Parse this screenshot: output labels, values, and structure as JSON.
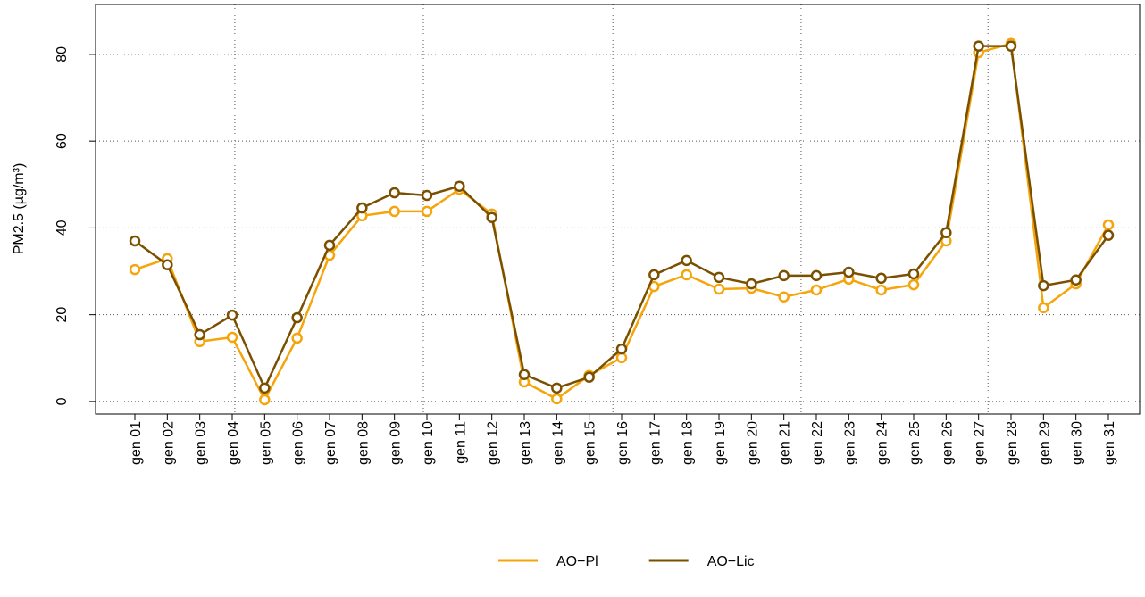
{
  "chart_data": {
    "type": "line",
    "y_label": "PM2.5 (µg/m³)",
    "categories": [
      "gen 01",
      "gen 02",
      "gen 03",
      "gen 04",
      "gen 05",
      "gen 06",
      "gen 07",
      "gen 08",
      "gen 09",
      "gen 10",
      "gen 11",
      "gen 12",
      "gen 13",
      "gen 14",
      "gen 15",
      "gen 16",
      "gen 17",
      "gen 18",
      "gen 19",
      "gen 20",
      "gen 21",
      "gen 22",
      "gen 23",
      "gen 24",
      "gen 25",
      "gen 26",
      "gen 27",
      "gen 28",
      "gen 29",
      "gen 30",
      "gen 31"
    ],
    "series": [
      {
        "name": "AO−Pl",
        "color": "#f5a40a",
        "values": [
          30.4,
          32.9,
          13.8,
          14.8,
          0.4,
          14.6,
          33.7,
          42.8,
          43.8,
          43.8,
          48.9,
          43.2,
          4.5,
          0.6,
          6.0,
          10.1,
          26.5,
          29.2,
          25.9,
          26.1,
          24.1,
          25.7,
          28.2,
          25.7,
          26.9,
          37.0,
          80.4,
          82.5,
          21.6,
          27.1,
          40.7
        ]
      },
      {
        "name": "AO−Lic",
        "color": "#7a5000",
        "values": [
          37.0,
          31.5,
          15.4,
          19.9,
          3.1,
          19.3,
          36.0,
          44.6,
          48.1,
          47.5,
          49.6,
          42.4,
          6.2,
          3.1,
          5.6,
          12.1,
          29.2,
          32.5,
          28.6,
          27.1,
          29.0,
          29.0,
          29.8,
          28.4,
          29.4,
          38.9,
          81.9,
          81.9,
          26.7,
          28.0,
          38.3
        ]
      }
    ],
    "ylim": [
      -2.9,
      91.5
    ],
    "yticks": [
      0,
      20,
      40,
      60,
      80
    ],
    "grid": true,
    "xgrid": [
      4.08,
      9.89,
      15.73,
      21.53,
      27.29
    ],
    "legend": "bottom"
  }
}
